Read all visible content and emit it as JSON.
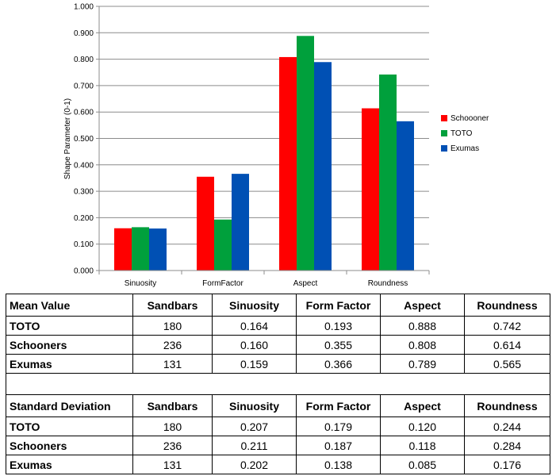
{
  "chart_data": {
    "type": "bar",
    "ylabel": "Shape Parameter (0-1)",
    "ylim": [
      0,
      1
    ],
    "yticks": [
      "0.000",
      "0.100",
      "0.200",
      "0.300",
      "0.400",
      "0.500",
      "0.600",
      "0.700",
      "0.800",
      "0.900",
      "1.000"
    ],
    "categories": [
      "Sinuosity",
      "FormFactor",
      "Aspect",
      "Roundness"
    ],
    "series": [
      {
        "name": "Schoooner",
        "color": "#ff0000",
        "values": [
          0.16,
          0.355,
          0.808,
          0.614
        ]
      },
      {
        "name": "TOTO",
        "color": "#00a03c",
        "values": [
          0.164,
          0.193,
          0.888,
          0.742
        ]
      },
      {
        "name": "Exumas",
        "color": "#0050b4",
        "values": [
          0.159,
          0.366,
          0.789,
          0.565
        ]
      }
    ],
    "grid": true,
    "legend": "right"
  },
  "table": {
    "mean_header": [
      "Mean Value",
      "Sandbars",
      "Sinuosity",
      "Form Factor",
      "Aspect",
      "Roundness"
    ],
    "mean_rows": [
      [
        "TOTO",
        "180",
        "0.164",
        "0.193",
        "0.888",
        "0.742"
      ],
      [
        "Schooners",
        "236",
        "0.160",
        "0.355",
        "0.808",
        "0.614"
      ],
      [
        "Exumas",
        "131",
        "0.159",
        "0.366",
        "0.789",
        "0.565"
      ]
    ],
    "sd_header": [
      "Standard Deviation",
      "Sandbars",
      "Sinuosity",
      "Form Factor",
      "Aspect",
      "Roundness"
    ],
    "sd_rows": [
      [
        "TOTO",
        "180",
        "0.207",
        "0.179",
        "0.120",
        "0.244"
      ],
      [
        "Schooners",
        "236",
        "0.211",
        "0.187",
        "0.118",
        "0.284"
      ],
      [
        "Exumas",
        "131",
        "0.202",
        "0.138",
        "0.085",
        "0.176"
      ]
    ]
  }
}
